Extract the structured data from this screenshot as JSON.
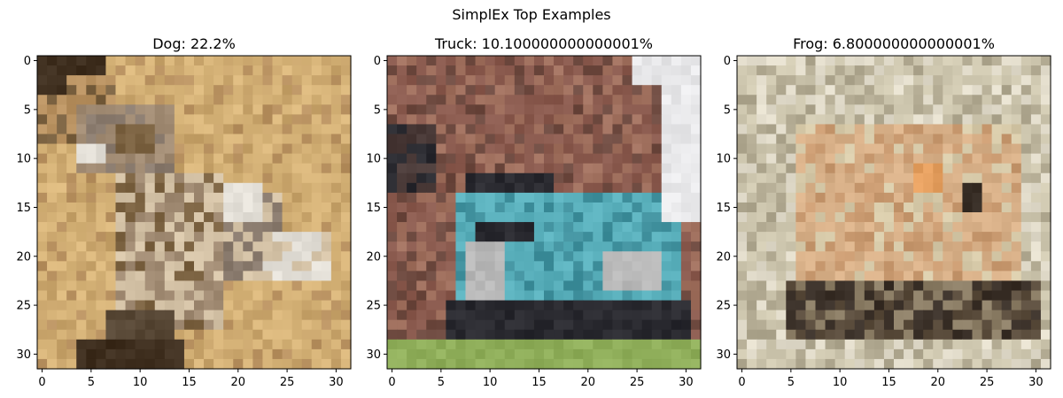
{
  "figure": {
    "suptitle": "SimplEx Top Examples"
  },
  "chart_data": [
    {
      "type": "heatmap",
      "title": "Dog: 22.2%",
      "xlabel": "",
      "ylabel": "",
      "xlim": [
        -0.5,
        31.5
      ],
      "ylim": [
        31.5,
        -0.5
      ],
      "xticks": [
        0,
        5,
        10,
        15,
        20,
        25,
        30
      ],
      "yticks": [
        0,
        5,
        10,
        15,
        20,
        25,
        30
      ],
      "grid": false,
      "palette": [
        "#d8b57a",
        "#c7a36a",
        "#b89160",
        "#7a6140",
        "#3e2e1e",
        "#e4e0d8",
        "#8a7b6e",
        "#d4c2a6",
        "#5a4a38",
        "#a08a72"
      ]
    },
    {
      "type": "heatmap",
      "title": "Truck: 10.100000000000001%",
      "xlabel": "",
      "ylabel": "",
      "xlim": [
        -0.5,
        31.5
      ],
      "ylim": [
        31.5,
        -0.5
      ],
      "xticks": [
        0,
        5,
        10,
        15,
        20,
        25,
        30
      ],
      "yticks": [
        0,
        5,
        10,
        15,
        20,
        25,
        30
      ],
      "grid": false,
      "palette": [
        "#8a5a4e",
        "#a0705e",
        "#6e4a40",
        "#5ab0bc",
        "#3f8f9c",
        "#2a2a30",
        "#e8e8ea",
        "#8fae5a",
        "#b8b8b8",
        "#4a3a38"
      ]
    },
    {
      "type": "heatmap",
      "title": "Frog: 6.800000000000001%",
      "xlabel": "",
      "ylabel": "",
      "xlim": [
        -0.5,
        31.5
      ],
      "ylim": [
        31.5,
        -0.5
      ],
      "xticks": [
        0,
        5,
        10,
        15,
        20,
        25,
        30
      ],
      "yticks": [
        0,
        5,
        10,
        15,
        20,
        25,
        30
      ],
      "grid": false,
      "palette": [
        "#cfc8b0",
        "#d8b088",
        "#c99a70",
        "#e6a060",
        "#5a4c3c",
        "#3a3028",
        "#e2dccb",
        "#b0a890",
        "#8c7e66",
        "#d6c9a8"
      ]
    }
  ]
}
